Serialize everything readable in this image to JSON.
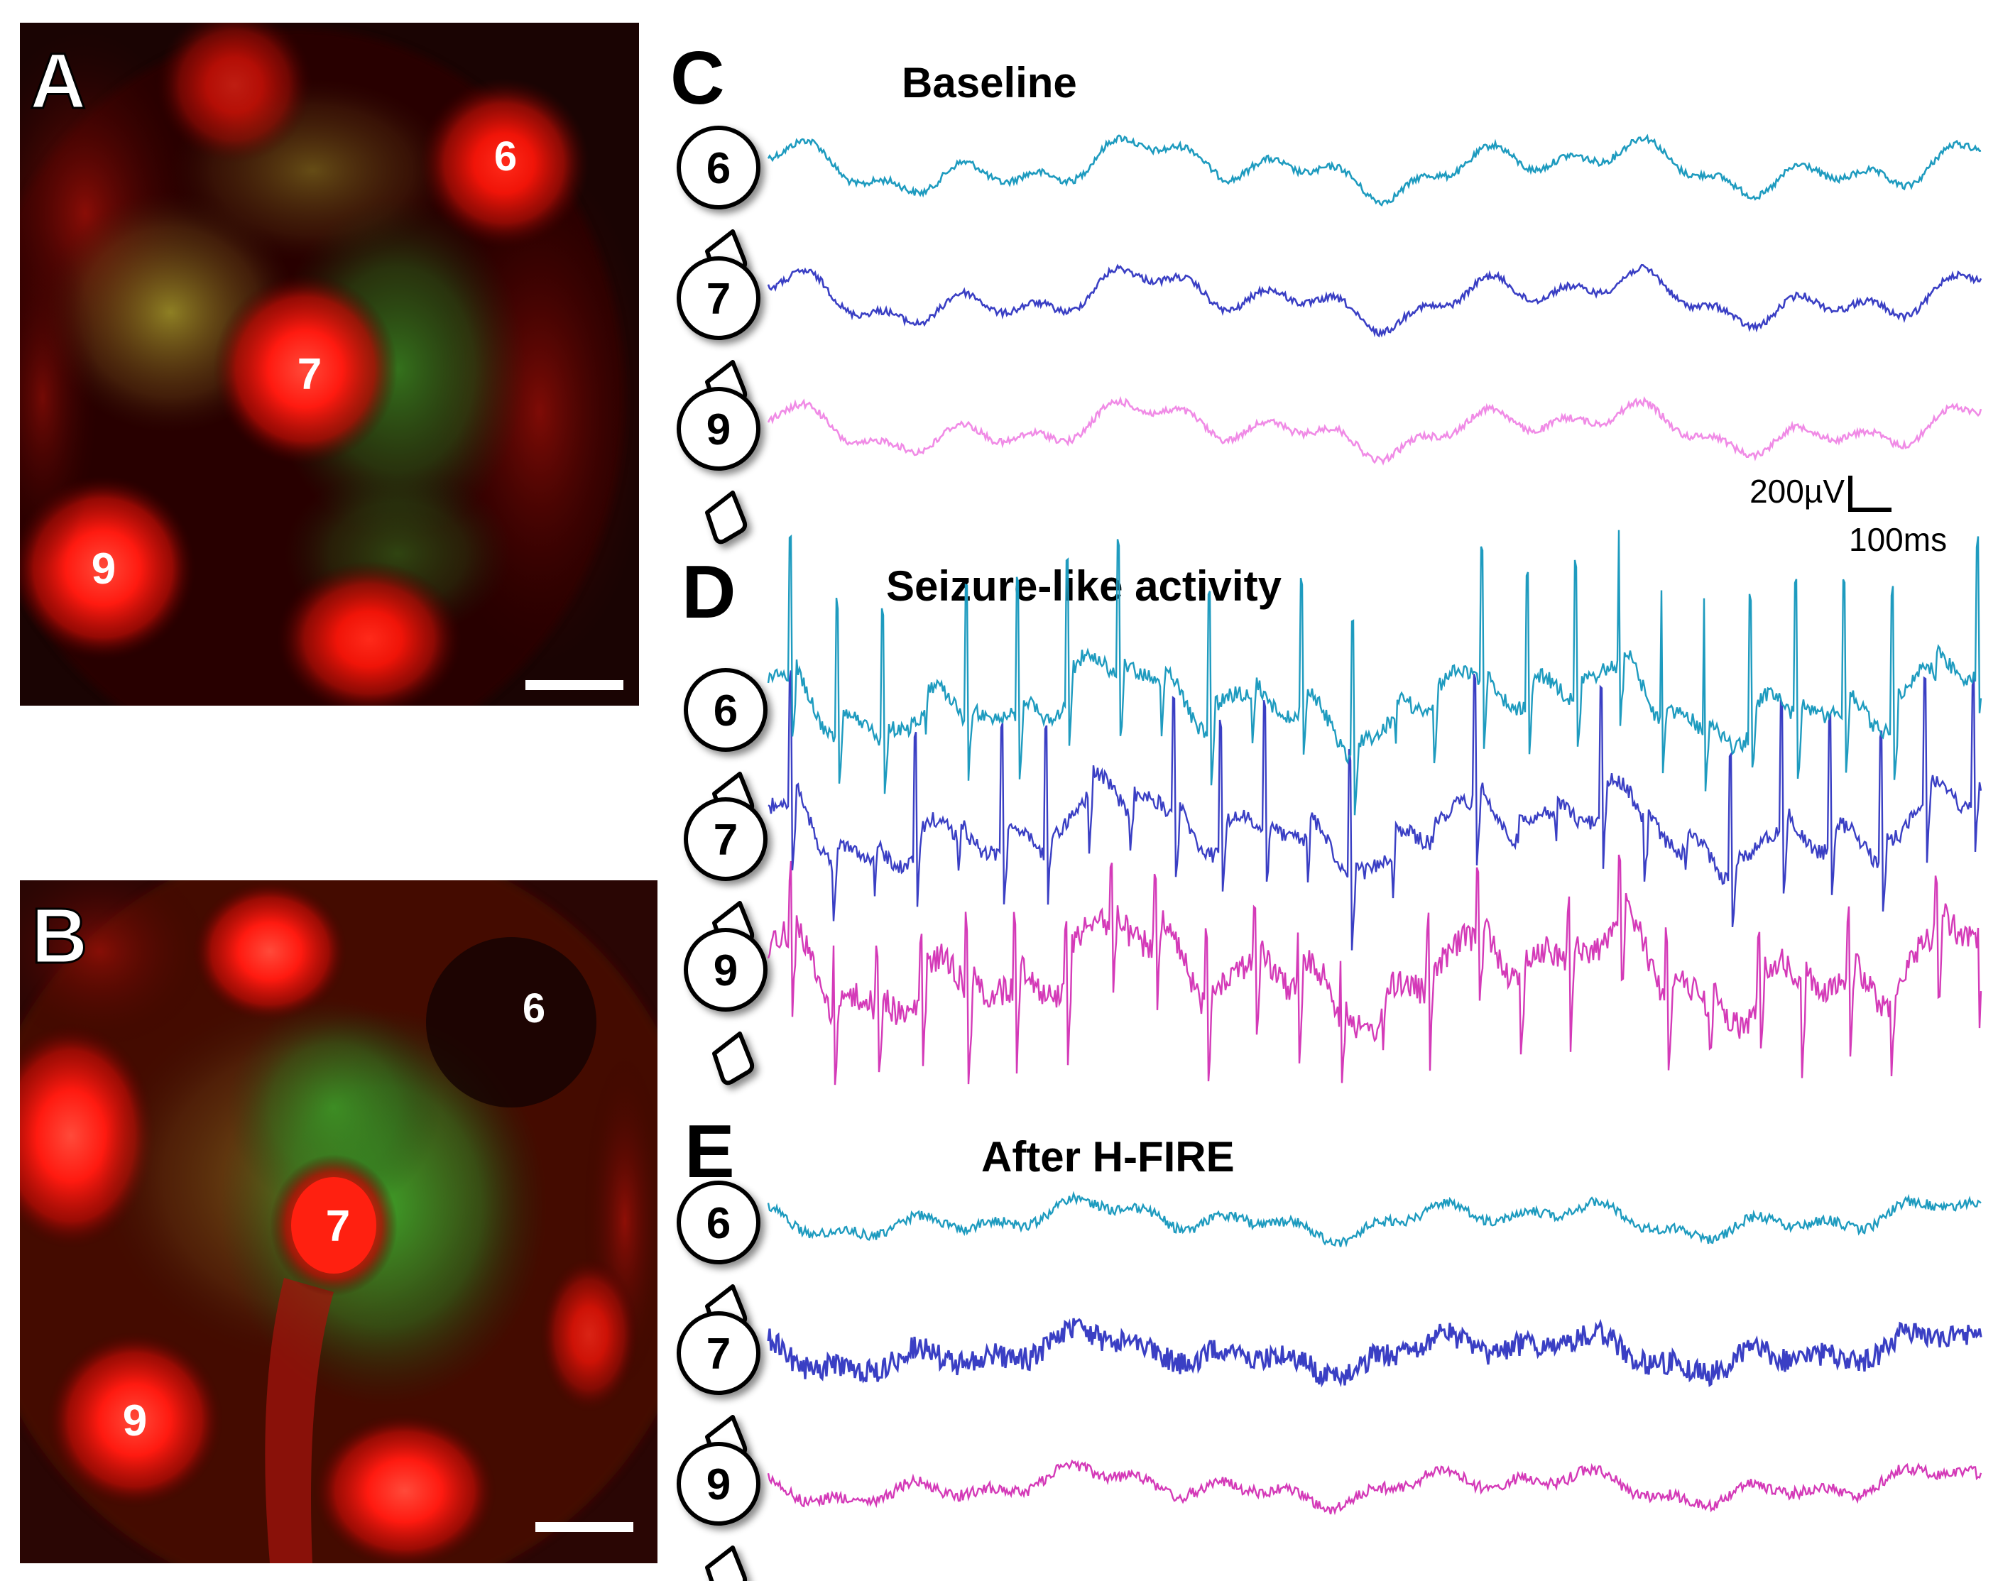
{
  "panels": {
    "A": {
      "letter": "A",
      "labels": [
        "6",
        "7",
        "9"
      ]
    },
    "B": {
      "letter": "B",
      "labels": [
        "6",
        "7",
        "9"
      ]
    },
    "C": {
      "letter": "C",
      "title": "Baseline",
      "electrodes": [
        "6",
        "7",
        "9"
      ]
    },
    "D": {
      "letter": "D",
      "title": "Seizure-like activity",
      "electrodes": [
        "6",
        "7",
        "9"
      ]
    },
    "E": {
      "letter": "E",
      "title": "After H-FIRE",
      "electrodes": [
        "6",
        "7",
        "9"
      ]
    }
  },
  "scale_bar": {
    "voltage": "200µV",
    "time": "100ms"
  },
  "colors": {
    "trace_6": "#1e9bbf",
    "trace_7": "#3a3fc4",
    "trace_9_baseline": "#f08be6",
    "trace_9": "#d43ab8",
    "fluor_red": "#ff1a10",
    "fluor_green": "#3aa82a"
  }
}
